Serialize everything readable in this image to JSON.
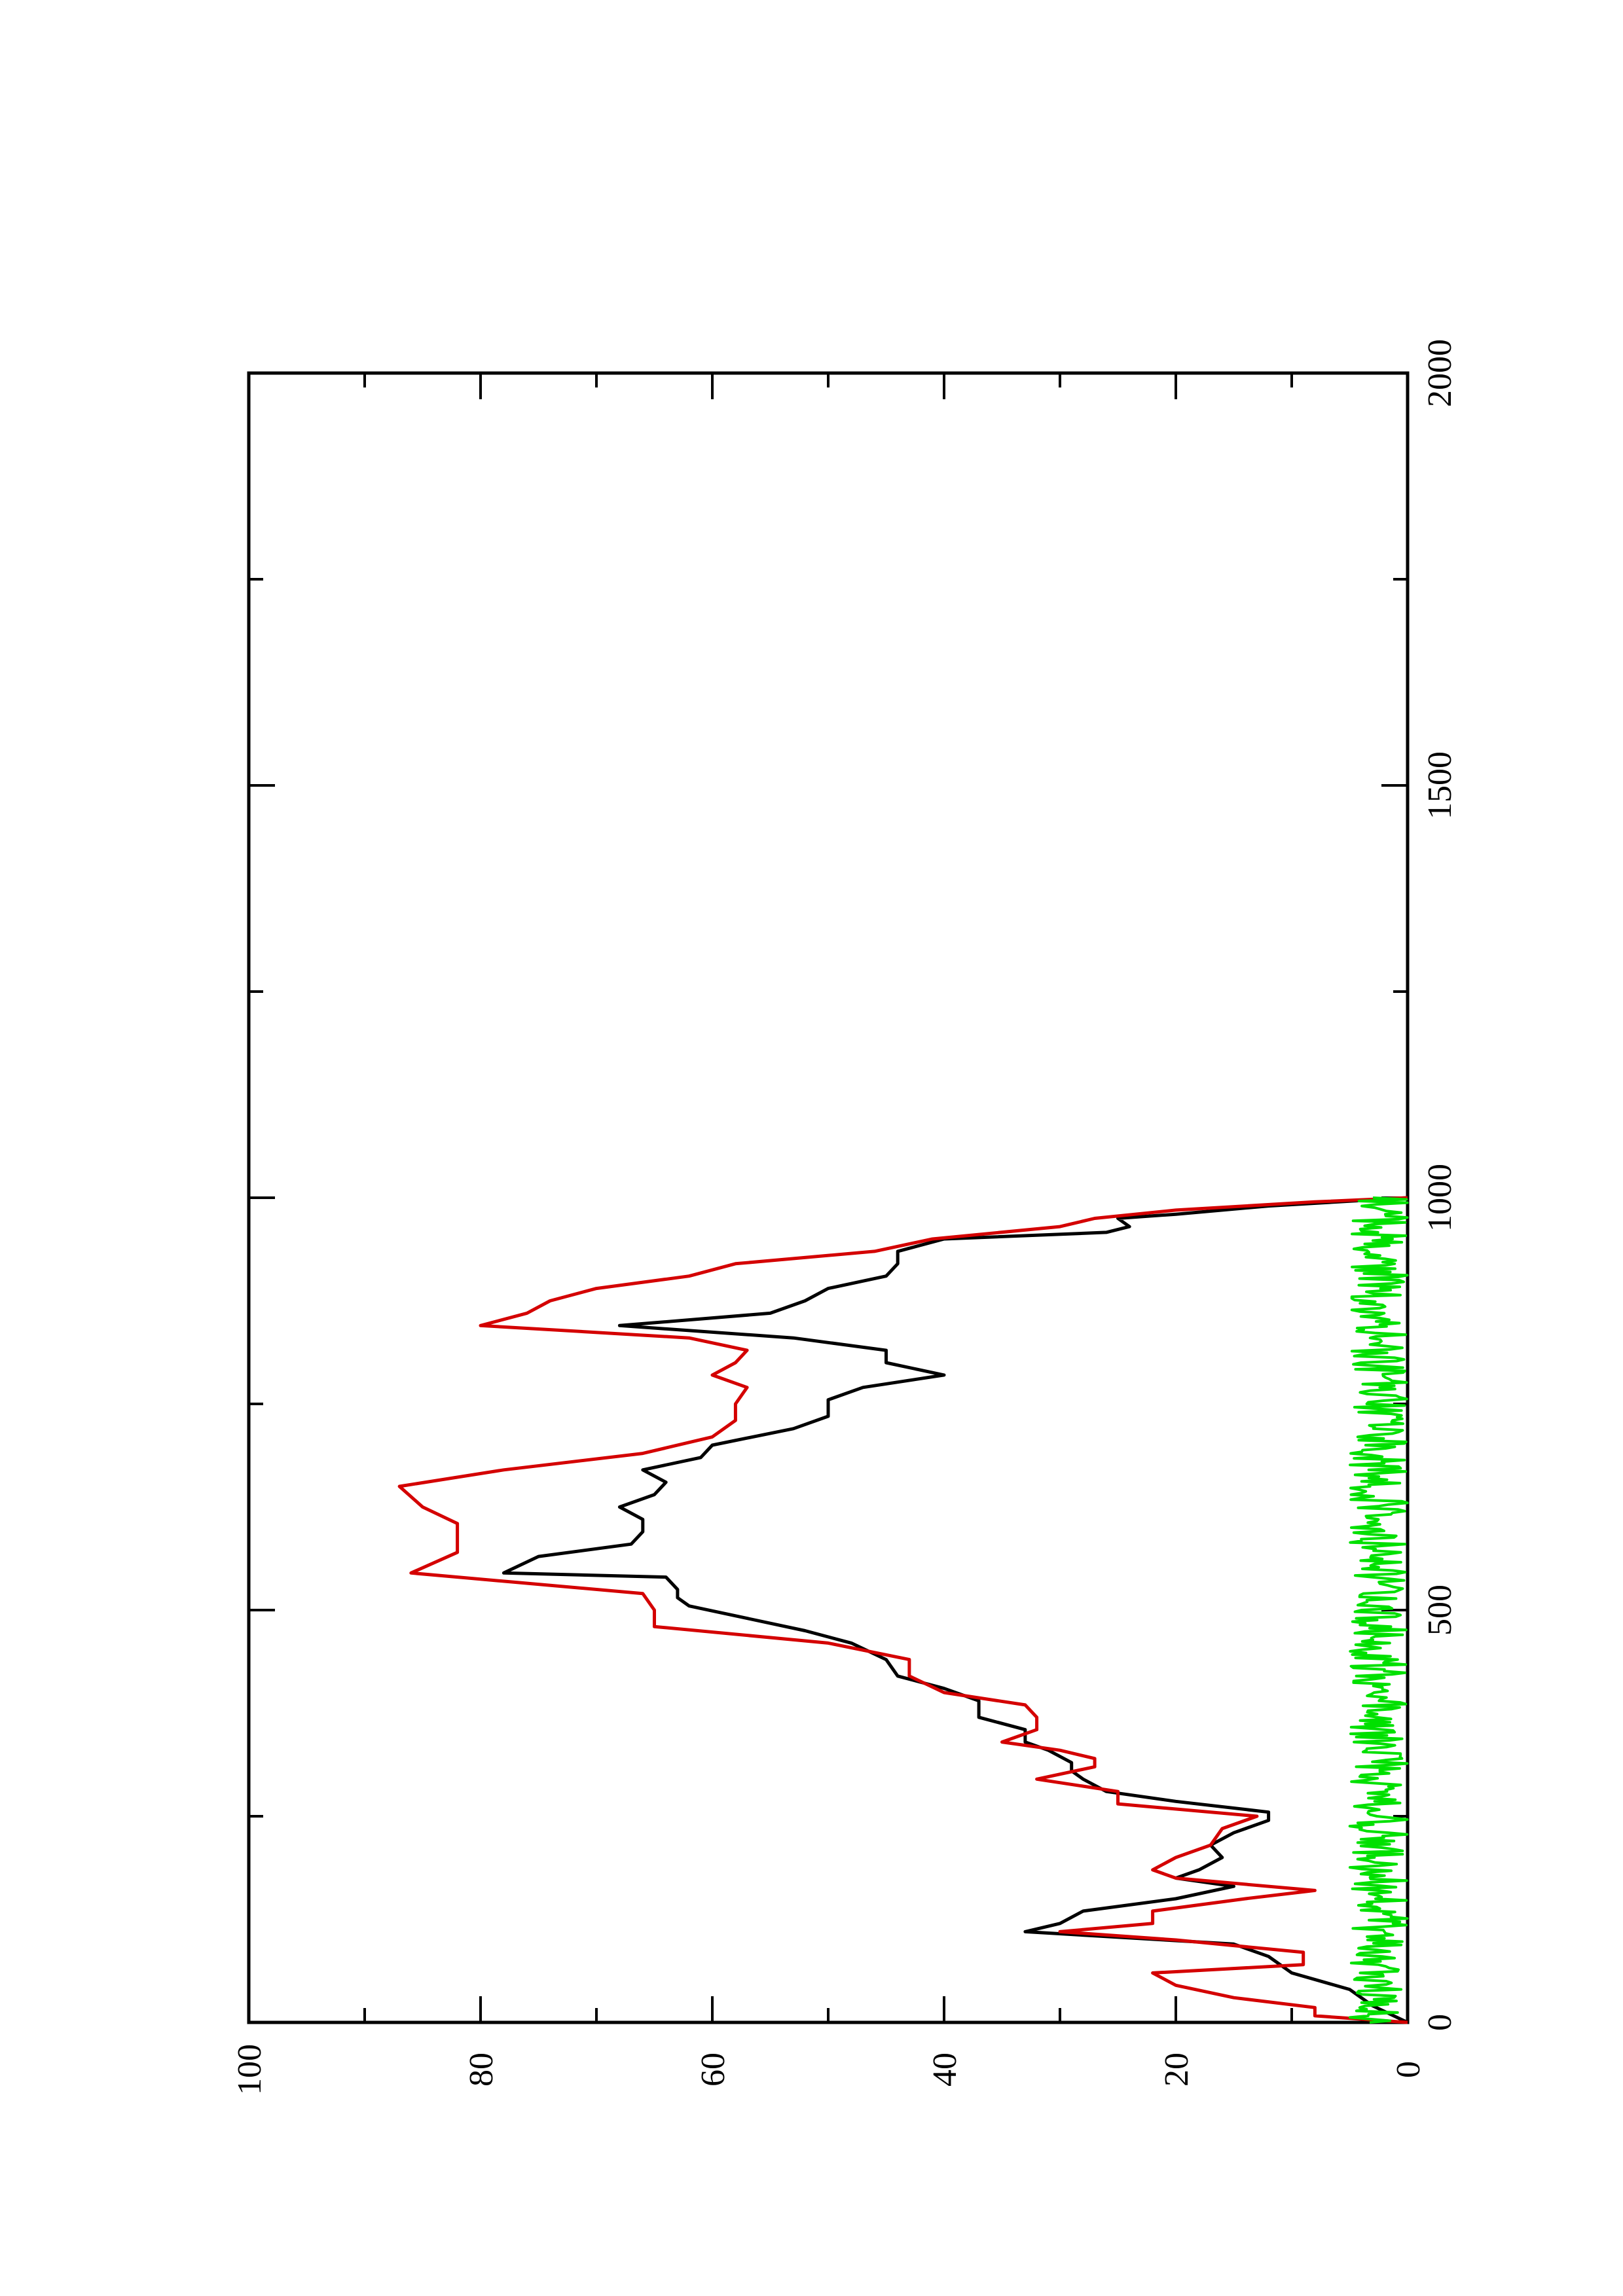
{
  "chart_data": {
    "type": "line",
    "orientation": "rotated-90-ccw",
    "title": "",
    "xlabel": "",
    "ylabel": "",
    "xlim": [
      0,
      2000
    ],
    "ylim": [
      0,
      100
    ],
    "x_ticks": [
      "0",
      "500",
      "1000",
      "1500",
      "2000"
    ],
    "y_ticks": [
      "0",
      "20",
      "40",
      "60",
      "80",
      "100"
    ],
    "grid": false,
    "legend": "none",
    "series": [
      {
        "color": "#000000",
        "points": [
          [
            0,
            0
          ],
          [
            20,
            3
          ],
          [
            40,
            5
          ],
          [
            60,
            10
          ],
          [
            80,
            12
          ],
          [
            95,
            15
          ],
          [
            110,
            33
          ],
          [
            120,
            30
          ],
          [
            135,
            28
          ],
          [
            150,
            20
          ],
          [
            165,
            15
          ],
          [
            175,
            20
          ],
          [
            185,
            18
          ],
          [
            200,
            16
          ],
          [
            215,
            17
          ],
          [
            230,
            15
          ],
          [
            245,
            12
          ],
          [
            255,
            12
          ],
          [
            268,
            20
          ],
          [
            280,
            26
          ],
          [
            295,
            28
          ],
          [
            305,
            29
          ],
          [
            315,
            29
          ],
          [
            330,
            31
          ],
          [
            340,
            33
          ],
          [
            355,
            33
          ],
          [
            370,
            37
          ],
          [
            390,
            37
          ],
          [
            405,
            40
          ],
          [
            420,
            44
          ],
          [
            440,
            45
          ],
          [
            460,
            48
          ],
          [
            475,
            52
          ],
          [
            490,
            57
          ],
          [
            505,
            62
          ],
          [
            515,
            63
          ],
          [
            525,
            63
          ],
          [
            540,
            64
          ],
          [
            545,
            78
          ],
          [
            565,
            75
          ],
          [
            580,
            67
          ],
          [
            595,
            66
          ],
          [
            610,
            66
          ],
          [
            625,
            68
          ],
          [
            640,
            65
          ],
          [
            655,
            64
          ],
          [
            670,
            66
          ],
          [
            685,
            61
          ],
          [
            700,
            60
          ],
          [
            720,
            53
          ],
          [
            735,
            50
          ],
          [
            755,
            50
          ],
          [
            770,
            47
          ],
          [
            785,
            40
          ],
          [
            800,
            45
          ],
          [
            815,
            45
          ],
          [
            830,
            53
          ],
          [
            845,
            68
          ],
          [
            860,
            55
          ],
          [
            875,
            52
          ],
          [
            890,
            50
          ],
          [
            905,
            45
          ],
          [
            920,
            44
          ],
          [
            935,
            44
          ],
          [
            950,
            40
          ],
          [
            958,
            26
          ],
          [
            965,
            24
          ],
          [
            975,
            25
          ],
          [
            980,
            20
          ],
          [
            990,
            12
          ],
          [
            1000,
            0
          ]
        ]
      },
      {
        "color": "#d40000",
        "points": [
          [
            0,
            0
          ],
          [
            8,
            8
          ],
          [
            18,
            8
          ],
          [
            30,
            15
          ],
          [
            45,
            20
          ],
          [
            60,
            22
          ],
          [
            70,
            9
          ],
          [
            85,
            9
          ],
          [
            100,
            20
          ],
          [
            110,
            30
          ],
          [
            120,
            22
          ],
          [
            135,
            22
          ],
          [
            150,
            14
          ],
          [
            160,
            8
          ],
          [
            175,
            20
          ],
          [
            185,
            22
          ],
          [
            200,
            20
          ],
          [
            215,
            17
          ],
          [
            235,
            16
          ],
          [
            250,
            13
          ],
          [
            265,
            25
          ],
          [
            280,
            25
          ],
          [
            295,
            32
          ],
          [
            310,
            27
          ],
          [
            320,
            27
          ],
          [
            330,
            30
          ],
          [
            340,
            35
          ],
          [
            355,
            32
          ],
          [
            370,
            32
          ],
          [
            385,
            33
          ],
          [
            400,
            40
          ],
          [
            420,
            43
          ],
          [
            440,
            43
          ],
          [
            460,
            50
          ],
          [
            480,
            65
          ],
          [
            500,
            65
          ],
          [
            520,
            66
          ],
          [
            545,
            86
          ],
          [
            570,
            82
          ],
          [
            585,
            82
          ],
          [
            605,
            82
          ],
          [
            625,
            85
          ],
          [
            650,
            87
          ],
          [
            670,
            78
          ],
          [
            690,
            66
          ],
          [
            710,
            60
          ],
          [
            730,
            58
          ],
          [
            750,
            58
          ],
          [
            770,
            57
          ],
          [
            785,
            60
          ],
          [
            800,
            58
          ],
          [
            815,
            57
          ],
          [
            830,
            62
          ],
          [
            845,
            80
          ],
          [
            860,
            76
          ],
          [
            875,
            74
          ],
          [
            890,
            70
          ],
          [
            905,
            62
          ],
          [
            920,
            58
          ],
          [
            935,
            46
          ],
          [
            950,
            41
          ],
          [
            965,
            30
          ],
          [
            975,
            27
          ],
          [
            985,
            20
          ],
          [
            995,
            8
          ],
          [
            1000,
            0
          ]
        ]
      },
      {
        "color": "#00e000",
        "noise": true,
        "x_range": [
          0,
          1000
        ],
        "y_range": [
          0,
          5
        ]
      }
    ]
  }
}
